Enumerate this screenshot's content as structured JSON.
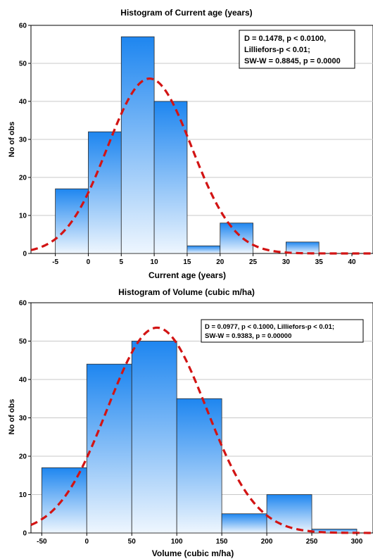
{
  "colors": {
    "bar_top": "#1e86f0",
    "bar_bottom": "#eef6fe",
    "bar_stroke": "#2a2a2a",
    "curve": "#d21414",
    "grid": "#c8c8c8",
    "frame": "#000000"
  },
  "chart_data": [
    {
      "type": "bar",
      "subtype": "histogram",
      "title": "Histogram of Current age (years)",
      "xlabel": "Current age (years)",
      "ylabel": "No of obs",
      "xlim": [
        -8.7,
        43.2
      ],
      "ylim": [
        0,
        60
      ],
      "xticks": [
        "-5",
        "0",
        "5",
        "10",
        "15",
        "20",
        "25",
        "30",
        "35",
        "40"
      ],
      "xtick_values": [
        -5,
        0,
        5,
        10,
        15,
        20,
        25,
        30,
        35,
        40
      ],
      "yticks": [
        "0",
        "10",
        "20",
        "30",
        "40",
        "50",
        "60"
      ],
      "ytick_values": [
        0,
        10,
        20,
        30,
        40,
        50,
        60
      ],
      "grid": "horizontal",
      "bins": [
        {
          "x0": -5,
          "x1": 0,
          "count": 17
        },
        {
          "x0": 0,
          "x1": 5,
          "count": 32
        },
        {
          "x0": 5,
          "x1": 10,
          "count": 57
        },
        {
          "x0": 10,
          "x1": 15,
          "count": 40
        },
        {
          "x0": 15,
          "x1": 20,
          "count": 2
        },
        {
          "x0": 20,
          "x1": 25,
          "count": 8
        },
        {
          "x0": 25,
          "x1": 30,
          "count": 0
        },
        {
          "x0": 30,
          "x1": 35,
          "count": 3
        }
      ],
      "fitted_normal": {
        "mean": 9.3,
        "sd": 6.4,
        "peak": 46
      },
      "stats_lines": [
        "D = 0.1478, p < 0.0100,",
        "Lilliefors-p < 0.01;",
        "SW-W = 0.8845, p = 0.0000"
      ],
      "stats_placement": "top-right"
    },
    {
      "type": "bar",
      "subtype": "histogram",
      "title": "Histogram of Volume (cubic m/ha)",
      "xlabel": "Volume (cubic m/ha)",
      "ylabel": "No of obs",
      "xlim": [
        -62,
        318
      ],
      "ylim": [
        0,
        60
      ],
      "xticks": [
        "-50",
        "0",
        "50",
        "100",
        "150",
        "200",
        "250",
        "300"
      ],
      "xtick_values": [
        -50,
        0,
        50,
        100,
        150,
        200,
        250,
        300
      ],
      "yticks": [
        "0",
        "10",
        "20",
        "30",
        "40",
        "50",
        "60"
      ],
      "ytick_values": [
        0,
        10,
        20,
        30,
        40,
        50,
        60
      ],
      "grid": "horizontal",
      "bins": [
        {
          "x0": -50,
          "x1": 0,
          "count": 17
        },
        {
          "x0": 0,
          "x1": 50,
          "count": 44
        },
        {
          "x0": 50,
          "x1": 100,
          "count": 50
        },
        {
          "x0": 100,
          "x1": 150,
          "count": 35
        },
        {
          "x0": 150,
          "x1": 200,
          "count": 5
        },
        {
          "x0": 200,
          "x1": 250,
          "count": 10
        },
        {
          "x0": 250,
          "x1": 300,
          "count": 1
        }
      ],
      "fitted_normal": {
        "mean": 78,
        "sd": 55,
        "peak": 53.5
      },
      "stats_lines": [
        "D = 0.0977, p < 0.1000, Lilliefors-p < 0.01;",
        "SW-W = 0.9383, p = 0.00000"
      ],
      "stats_placement": "top-right"
    }
  ]
}
